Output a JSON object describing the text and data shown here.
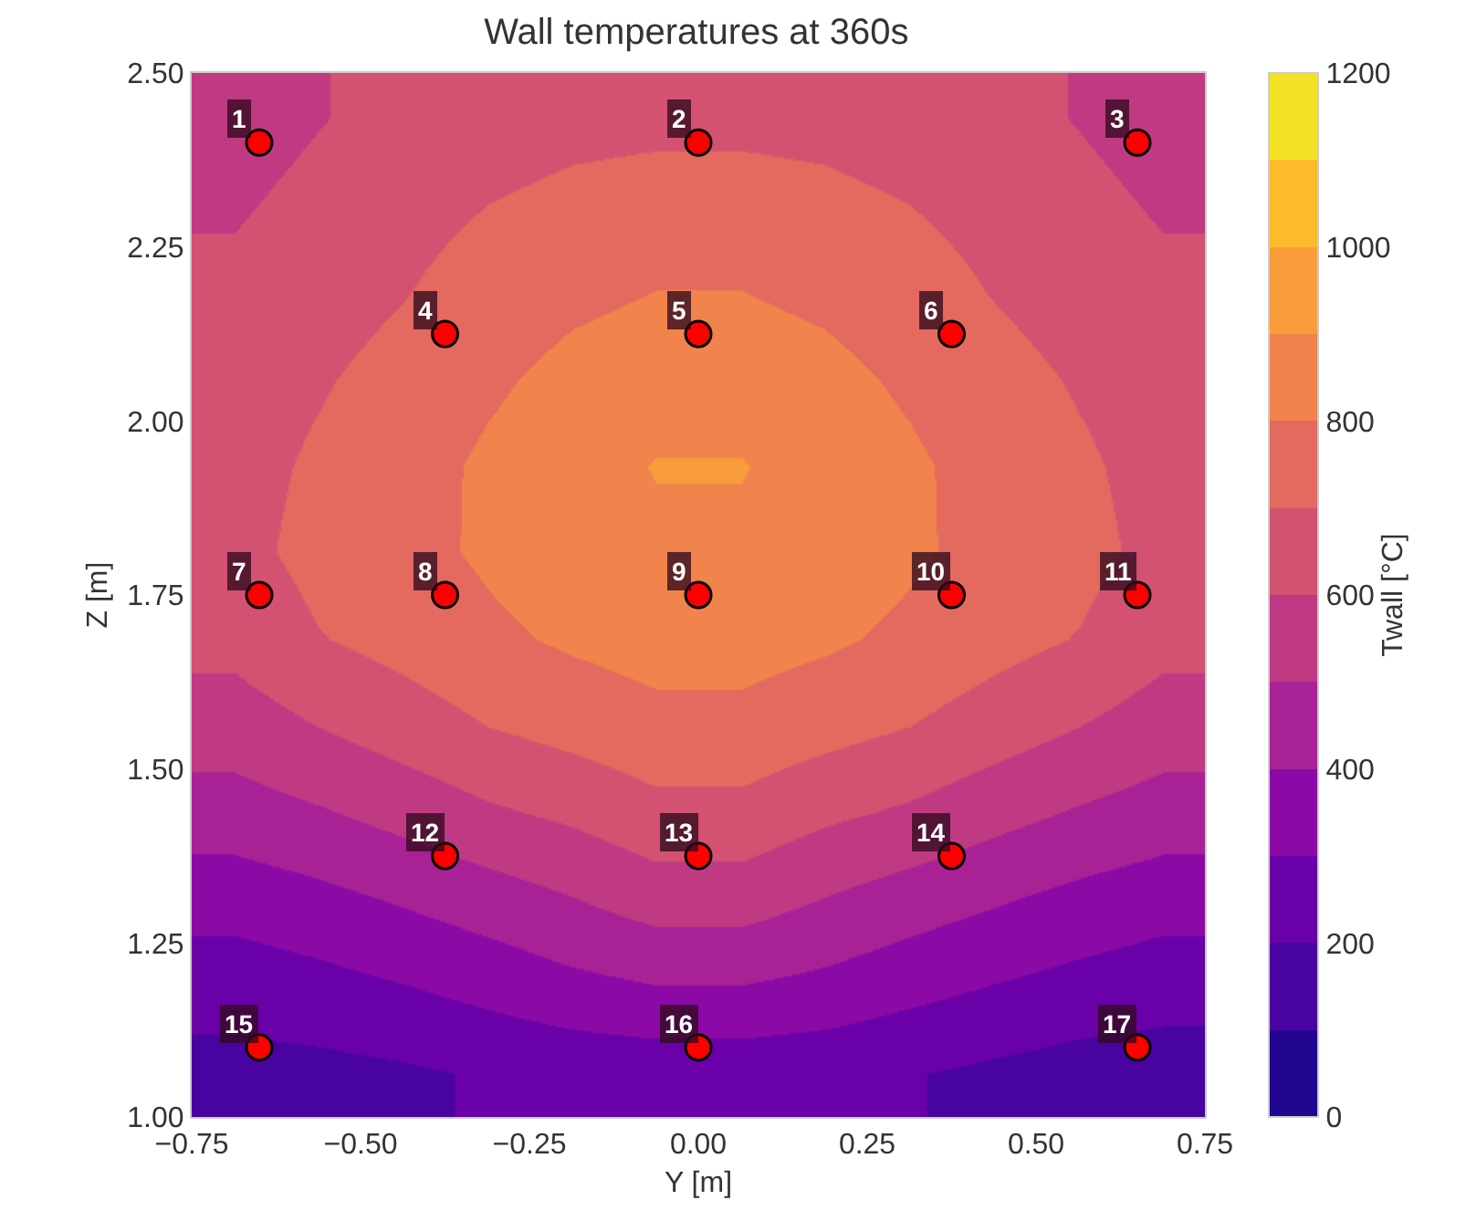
{
  "chart_data": {
    "type": "heatmap",
    "title": "Wall temperatures at 360s",
    "xlabel": "Y [m]",
    "ylabel": "Z [m]",
    "clabel": "Twall [°C]",
    "x": [
      -0.6875,
      -0.5625,
      -0.4375,
      -0.3125,
      -0.1875,
      -0.0625,
      0.0625,
      0.1875,
      0.3125,
      0.4375,
      0.5625,
      0.6875
    ],
    "y": [
      2.4375,
      2.3125,
      2.1875,
      2.0625,
      1.9375,
      1.8125,
      1.6875,
      1.5625,
      1.4375,
      1.3125,
      1.1875,
      1.0625
    ],
    "cells": [
      [
        560,
        595,
        630,
        650,
        670,
        675,
        675,
        670,
        650,
        630,
        595,
        560
      ],
      [
        590,
        625,
        665,
        700,
        725,
        740,
        740,
        725,
        700,
        665,
        625,
        590
      ],
      [
        620,
        655,
        695,
        745,
        780,
        800,
        800,
        780,
        745,
        695,
        655,
        620
      ],
      [
        650,
        690,
        735,
        785,
        825,
        845,
        845,
        825,
        785,
        735,
        690,
        650
      ],
      [
        665,
        715,
        765,
        815,
        855,
        905,
        905,
        855,
        815,
        765,
        715,
        665
      ],
      [
        670,
        730,
        770,
        815,
        855,
        880,
        880,
        855,
        815,
        770,
        730,
        670
      ],
      [
        630,
        695,
        735,
        780,
        815,
        840,
        840,
        815,
        780,
        735,
        695,
        630
      ],
      [
        550,
        600,
        650,
        700,
        735,
        770,
        770,
        735,
        700,
        650,
        600,
        550
      ],
      [
        455,
        490,
        535,
        585,
        620,
        670,
        670,
        620,
        585,
        535,
        490,
        455
      ],
      [
        340,
        370,
        410,
        450,
        495,
        545,
        545,
        495,
        450,
        410,
        370,
        340
      ],
      [
        240,
        265,
        295,
        330,
        370,
        395,
        395,
        370,
        330,
        295,
        265,
        240
      ],
      [
        165,
        170,
        185,
        210,
        225,
        235,
        235,
        225,
        205,
        180,
        155,
        150
      ]
    ],
    "clim": [
      0,
      1200
    ],
    "cticks": [
      0,
      200,
      400,
      600,
      800,
      1000,
      1200
    ],
    "xlim": [
      -0.75,
      0.75
    ],
    "xticks": [
      {
        "value": -0.75,
        "label": "−0.75"
      },
      {
        "value": -0.5,
        "label": "−0.50"
      },
      {
        "value": -0.25,
        "label": "−0.25"
      },
      {
        "value": 0,
        "label": "0.00"
      },
      {
        "value": 0.25,
        "label": "0.25"
      },
      {
        "value": 0.5,
        "label": "0.50"
      },
      {
        "value": 0.75,
        "label": "0.75"
      }
    ],
    "ylim": [
      1.0,
      2.5
    ],
    "yticks": [
      {
        "value": 1.0,
        "label": "1.00"
      },
      {
        "value": 1.25,
        "label": "1.25"
      },
      {
        "value": 1.5,
        "label": "1.50"
      },
      {
        "value": 1.75,
        "label": "1.75"
      },
      {
        "value": 2.0,
        "label": "2.00"
      },
      {
        "value": 2.25,
        "label": "2.25"
      },
      {
        "value": 2.5,
        "label": "2.50"
      }
    ],
    "series": [
      {
        "type": "scatter",
        "color": "#ff0000",
        "marker": "circle",
        "x": [
          -0.65,
          0,
          0.65,
          -0.375,
          0,
          0.375,
          -0.65,
          -0.375,
          0,
          0.375,
          0.65,
          -0.375,
          0,
          0.375,
          -0.65,
          0,
          0.65
        ],
        "values": [
          2.4,
          2.4,
          2.4,
          2.125,
          2.125,
          2.125,
          1.75,
          1.75,
          1.75,
          1.75,
          1.75,
          1.375,
          1.375,
          1.375,
          1.1,
          1.1,
          1.1
        ]
      }
    ],
    "annotations": [
      {
        "text": "1",
        "x": -0.65,
        "y": 2.4
      },
      {
        "text": "2",
        "x": 0,
        "y": 2.4
      },
      {
        "text": "3",
        "x": 0.65,
        "y": 2.4
      },
      {
        "text": "4",
        "x": -0.375,
        "y": 2.125
      },
      {
        "text": "5",
        "x": 0,
        "y": 2.125
      },
      {
        "text": "6",
        "x": 0.375,
        "y": 2.125
      },
      {
        "text": "7",
        "x": -0.65,
        "y": 1.75
      },
      {
        "text": "8",
        "x": -0.375,
        "y": 1.75
      },
      {
        "text": "9",
        "x": 0,
        "y": 1.75
      },
      {
        "text": "10",
        "x": 0.375,
        "y": 1.75
      },
      {
        "text": "11",
        "x": 0.65,
        "y": 1.75
      },
      {
        "text": "12",
        "x": -0.375,
        "y": 1.375
      },
      {
        "text": "13",
        "x": 0,
        "y": 1.375
      },
      {
        "text": "14",
        "x": 0.375,
        "y": 1.375
      },
      {
        "text": "15",
        "x": -0.65,
        "y": 1.1
      },
      {
        "text": "16",
        "x": 0,
        "y": 1.1
      },
      {
        "text": "17",
        "x": 0.65,
        "y": 1.1
      }
    ]
  }
}
